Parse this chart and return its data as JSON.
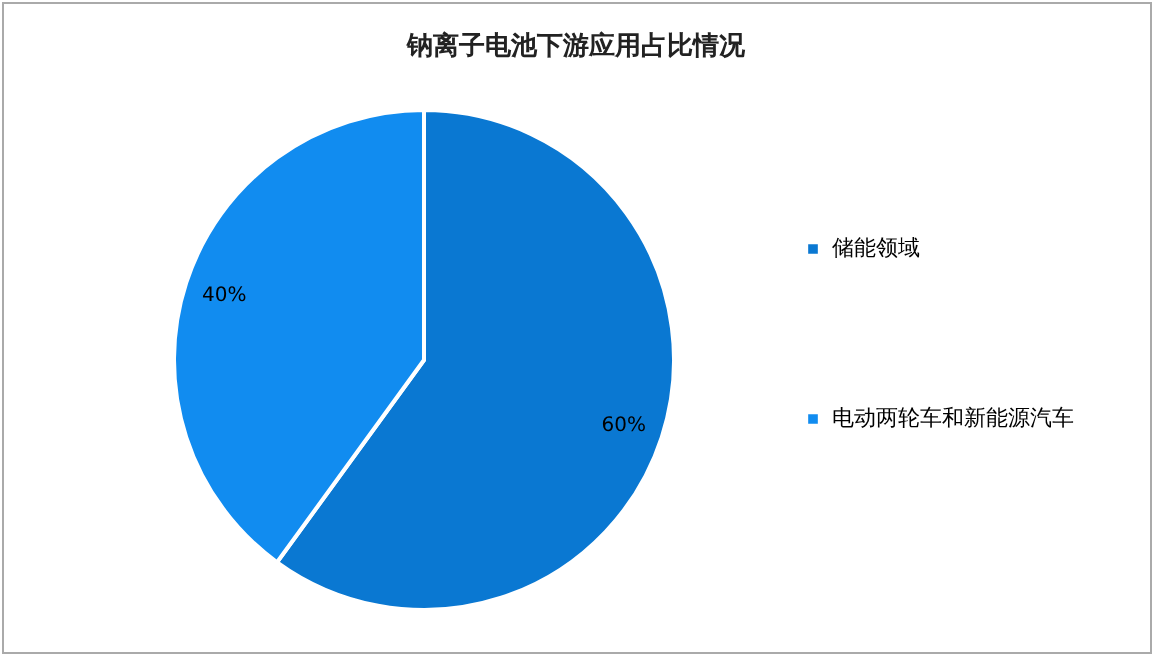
{
  "chart_data": {
    "type": "pie",
    "title": "钠离子电池下游应用占比情况",
    "categories": [
      "储能领域",
      "电动两轮车和新能源汽车"
    ],
    "values": [
      60,
      40
    ],
    "colors": [
      "#0a78d2",
      "#118cf0"
    ],
    "value_labels": [
      "60%",
      "40%"
    ],
    "legend": "right"
  }
}
